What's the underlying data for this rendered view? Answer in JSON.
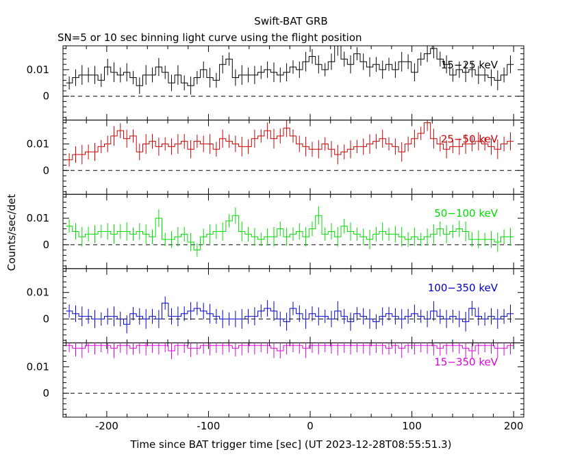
{
  "chart_data": {
    "type": "line",
    "title": "Swift-BAT GRB",
    "subtitle": "SN=5 or 10 sec binning light curve using the flight position",
    "xlabel": "Time since BAT trigger time [sec] (UT 2023-12-28T08:55:51.3)",
    "ylabel": "Counts/sec/det",
    "xlim": [
      -243,
      210
    ],
    "ylim": [
      -0.009,
      0.019
    ],
    "x_ticks": [
      "-200",
      "-100",
      "0",
      "100",
      "200"
    ],
    "y_ticks": [
      "0",
      "0.01"
    ],
    "grid": false,
    "legend": "none",
    "panels": [
      {
        "name": "15-25 keV",
        "label": "15−25 keV",
        "color": "#000000",
        "values": [
          0.005,
          0.007,
          0.008,
          0.008,
          0.008,
          0.006,
          0.011,
          0.009,
          0.008,
          0.009,
          0.007,
          0.004,
          0.008,
          0.008,
          0.011,
          0.009,
          0.005,
          0.008,
          0.005,
          0.004,
          0.007,
          0.01,
          0.007,
          0.006,
          0.012,
          0.014,
          0.007,
          0.008,
          0.008,
          0.008,
          0.009,
          0.01,
          0.009,
          0.008,
          0.009,
          0.011,
          0.01,
          0.013,
          0.015,
          0.012,
          0.01,
          0.013,
          0.019,
          0.014,
          0.012,
          0.016,
          0.013,
          0.011,
          0.012,
          0.01,
          0.012,
          0.01,
          0.013,
          0.013,
          0.009,
          0.014,
          0.016,
          0.018,
          0.014,
          0.012,
          0.008,
          0.01,
          0.009,
          0.01,
          0.008,
          0.008,
          0.007,
          0.006,
          0.008,
          0.012
        ]
      },
      {
        "name": "25-50 keV",
        "label": "25−50 keV",
        "color": "#cc0000",
        "values": [
          0.004,
          0.006,
          0.006,
          0.007,
          0.007,
          0.009,
          0.01,
          0.013,
          0.015,
          0.012,
          0.013,
          0.007,
          0.01,
          0.011,
          0.009,
          0.01,
          0.009,
          0.01,
          0.011,
          0.008,
          0.011,
          0.01,
          0.01,
          0.008,
          0.012,
          0.011,
          0.01,
          0.009,
          0.009,
          0.012,
          0.013,
          0.015,
          0.012,
          0.013,
          0.016,
          0.013,
          0.01,
          0.009,
          0.008,
          0.008,
          0.01,
          0.008,
          0.006,
          0.007,
          0.008,
          0.009,
          0.009,
          0.01,
          0.011,
          0.012,
          0.01,
          0.009,
          0.007,
          0.01,
          0.012,
          0.014,
          0.018,
          0.012,
          0.01,
          0.008,
          0.009,
          0.009,
          0.01,
          0.01,
          0.011,
          0.01,
          0.009,
          0.008,
          0.01,
          0.011
        ]
      },
      {
        "name": "50-100 keV",
        "label": "50−100 keV",
        "color": "#00dd00",
        "values": [
          0.007,
          0.005,
          0.003,
          0.004,
          0.004,
          0.005,
          0.005,
          0.004,
          0.005,
          0.005,
          0.004,
          0.005,
          0.004,
          0.003,
          0.01,
          0.002,
          0.002,
          0.003,
          0.004,
          0.001,
          -0.002,
          0.003,
          0.004,
          0.005,
          0.005,
          0.009,
          0.011,
          0.005,
          0.004,
          0.003,
          0.002,
          0.003,
          0.003,
          0.006,
          0.003,
          0.004,
          0.005,
          0.003,
          0.006,
          0.011,
          0.004,
          0.005,
          0.003,
          0.007,
          0.005,
          0.004,
          0.003,
          0.002,
          0.004,
          0.005,
          0.004,
          0.004,
          0.003,
          0.002,
          0.003,
          0.002,
          0.003,
          0.004,
          0.006,
          0.004,
          0.005,
          0.006,
          0.005,
          0.002,
          0.002,
          0.002,
          0.002,
          0.001,
          0.003,
          0.003
        ]
      },
      {
        "name": "100-350 keV",
        "label": "100−350 keV",
        "color": "#0000cc",
        "values": [
          0.003,
          0.002,
          0.001,
          0.001,
          0.0,
          0.0,
          0.001,
          0.001,
          0.0,
          -0.002,
          0.002,
          0.001,
          0.0,
          0.001,
          0.0,
          0.006,
          0.001,
          0.001,
          0.002,
          0.003,
          0.004,
          0.003,
          0.002,
          0.001,
          0.0,
          0.0,
          0.0,
          0.0,
          0.001,
          0.001,
          0.003,
          0.004,
          0.003,
          0.0,
          -0.001,
          0.004,
          0.002,
          0.0,
          0.002,
          0.001,
          0.001,
          0.0,
          0.003,
          0.001,
          -0.001,
          0.002,
          0.001,
          0.0,
          -0.001,
          0.001,
          0.002,
          0.001,
          0.0,
          0.001,
          0.002,
          0.001,
          0.0,
          0.003,
          0.001,
          0.0,
          0.001,
          0.0,
          -0.001,
          0.004,
          0.001,
          0.0,
          0.001,
          0.0,
          0.001,
          0.002
        ]
      },
      {
        "name": "15-350 keV",
        "label": "15−350 keV",
        "color": "#dd00dd",
        "values": [
          0.018,
          0.017,
          0.017,
          0.018,
          0.018,
          0.018,
          0.018,
          0.017,
          0.018,
          0.018,
          0.017,
          0.018,
          0.018,
          0.018,
          0.018,
          0.018,
          0.016,
          0.018,
          0.018,
          0.017,
          0.017,
          0.018,
          0.018,
          0.018,
          0.018,
          0.018,
          0.017,
          0.018,
          0.018,
          0.018,
          0.018,
          0.018,
          0.017,
          0.016,
          0.018,
          0.018,
          0.018,
          0.017,
          0.018,
          0.018,
          0.018,
          0.018,
          0.018,
          0.018,
          0.018,
          0.018,
          0.018,
          0.018,
          0.018,
          0.018,
          0.017,
          0.018,
          0.017,
          0.018,
          0.018,
          0.018,
          0.018,
          0.018,
          0.017,
          0.018,
          0.018,
          0.018,
          0.017,
          0.016,
          0.018,
          0.018,
          0.018,
          0.017,
          0.017,
          0.018
        ]
      }
    ]
  }
}
